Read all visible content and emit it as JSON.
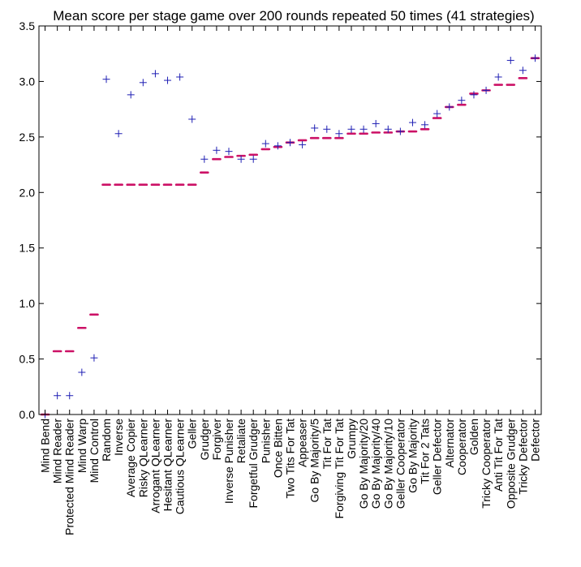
{
  "chart_data": {
    "type": "box",
    "title": "Mean score per stage game over 200 rounds repeated 50 times (41 strategies)",
    "xlabel": "",
    "ylabel": "",
    "ylim": [
      0.0,
      3.5
    ],
    "yticks": [
      "0.0",
      "0.5",
      "1.0",
      "1.5",
      "2.0",
      "2.5",
      "3.0",
      "3.5"
    ],
    "grid": false,
    "categories": [
      "Mind Bend",
      "Mind Reader",
      "Protected Mind Reader",
      "Mind Warp",
      "Mind Control",
      "Random",
      "Inverse",
      "Average Copier",
      "Risky QLearner",
      "Arrogant QLearner",
      "Hesitant QLearner",
      "Cautious QLearner",
      "Geller",
      "Grudger",
      "Forgiver",
      "Inverse Punisher",
      "Retaliate",
      "Forgetful Grudger",
      "Punisher",
      "Once Bitten",
      "Two Tits For Tat",
      "Appeaser",
      "Go By Majority/5",
      "Tit For Tat",
      "Forgiving Tit For Tat",
      "Grumpy",
      "Go By Majority/20",
      "Go By Majority/40",
      "Go By Majority/10",
      "Geller Cooperator",
      "Go By Majority",
      "Tit For 2 Tats",
      "Geller Defector",
      "Alternator",
      "Cooperator",
      "Golden",
      "Tricky Cooperator",
      "Anti Tit For Tat",
      "Opposite Grudger",
      "Tricky Defector",
      "Defector"
    ],
    "series": [
      {
        "name": "",
        "marker": "line",
        "color": "#cc1166",
        "values": [
          0.0,
          0.57,
          0.57,
          0.78,
          0.9,
          2.07,
          2.07,
          2.07,
          2.07,
          2.07,
          2.07,
          2.07,
          2.07,
          2.18,
          2.3,
          2.32,
          2.33,
          2.34,
          2.39,
          2.41,
          2.45,
          2.47,
          2.49,
          2.49,
          2.49,
          2.53,
          2.53,
          2.54,
          2.54,
          2.55,
          2.55,
          2.57,
          2.67,
          2.77,
          2.79,
          2.89,
          2.92,
          2.97,
          2.97,
          3.03,
          3.21
        ]
      },
      {
        "name": "",
        "marker": "plus",
        "color": "#1f1fb4",
        "values": [
          0.0,
          0.17,
          0.17,
          0.38,
          0.51,
          3.02,
          2.53,
          2.88,
          2.99,
          3.07,
          3.01,
          3.04,
          2.66,
          2.3,
          2.38,
          2.37,
          2.3,
          2.3,
          2.44,
          2.42,
          2.45,
          2.43,
          2.58,
          2.57,
          2.53,
          2.57,
          2.57,
          2.62,
          2.57,
          2.55,
          2.63,
          2.61,
          2.71,
          2.77,
          2.83,
          2.88,
          2.92,
          3.04,
          3.19,
          3.1,
          3.21
        ]
      }
    ]
  }
}
